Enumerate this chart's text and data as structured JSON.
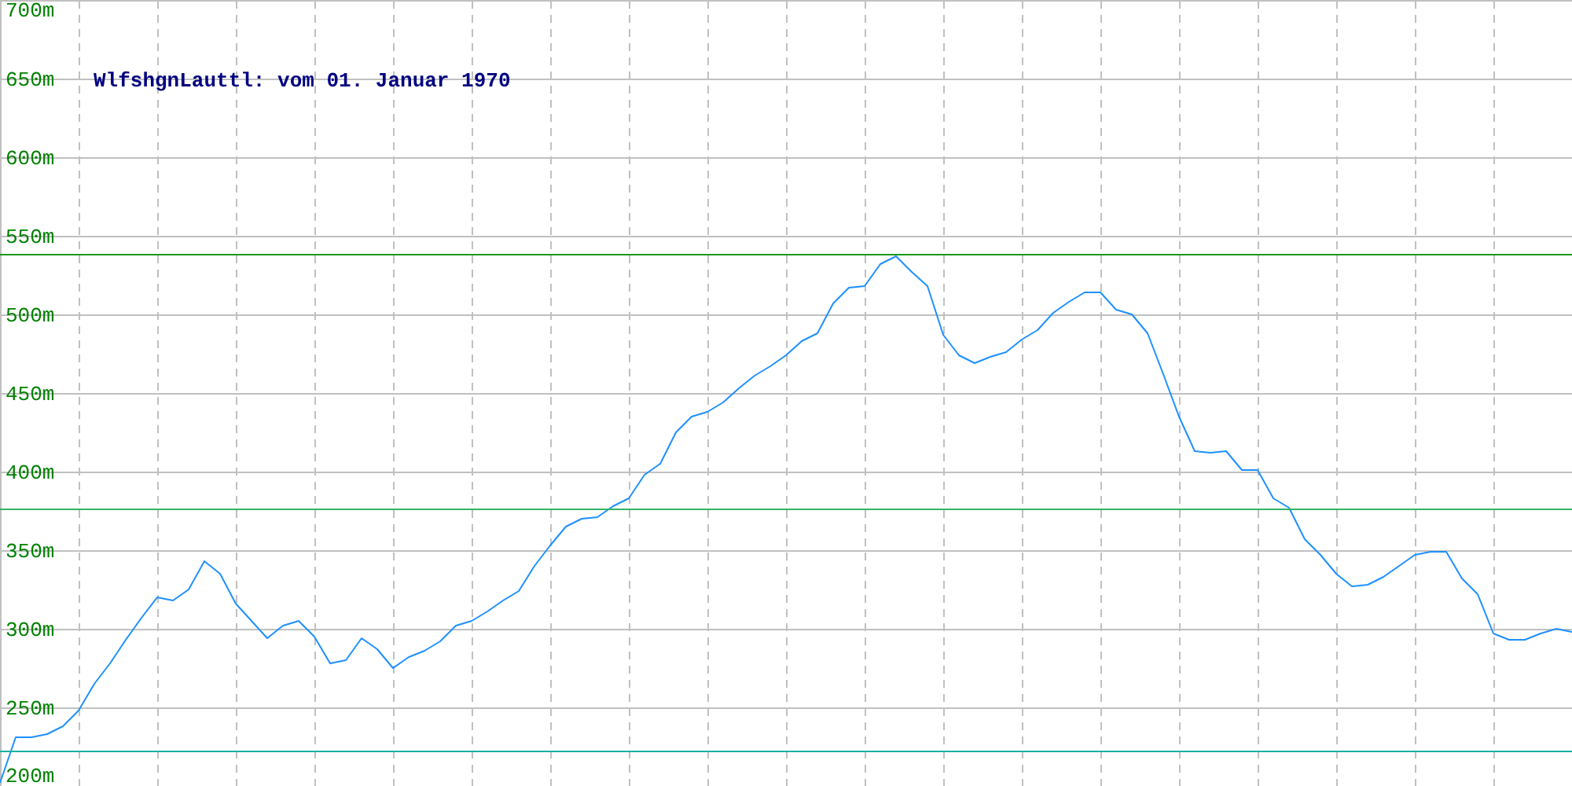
{
  "chart_data": {
    "type": "line",
    "title": "WlfshgnLauttl: vom 01. Januar 1970",
    "categories": [
      null,
      null,
      null,
      null,
      null,
      null,
      null,
      null,
      null,
      null,
      null,
      null,
      null,
      null,
      null,
      null,
      null,
      null,
      null,
      null,
      null,
      null,
      null,
      null,
      null,
      null,
      null,
      null,
      null,
      null,
      null,
      null,
      null,
      null,
      null,
      null,
      null,
      null,
      null,
      null,
      null,
      null,
      null,
      null,
      null,
      null,
      null,
      null,
      null,
      null,
      null,
      null,
      null,
      null,
      null,
      null,
      null,
      null,
      null,
      null,
      null,
      null,
      null,
      null,
      null,
      null,
      null,
      null,
      null,
      null,
      null,
      null,
      null,
      null,
      null,
      null,
      null,
      null,
      null,
      null,
      null,
      null,
      null,
      null,
      null,
      null,
      null,
      null,
      null,
      null,
      null,
      null,
      null,
      null,
      null,
      null,
      null,
      null,
      null,
      null,
      null
    ],
    "series": [
      {
        "color": "#1e90ff",
        "values": [
          202,
          231,
          231,
          233,
          238,
          248,
          265,
          278,
          293,
          307,
          320,
          318,
          325,
          343,
          335,
          316,
          305,
          294,
          302,
          305,
          295,
          278,
          280,
          294,
          287,
          275,
          282,
          286,
          292,
          302,
          305,
          311,
          318,
          324,
          340,
          353,
          365,
          370,
          371,
          378,
          383,
          398,
          405,
          425,
          435,
          438,
          444,
          453,
          461,
          467,
          474,
          483,
          488,
          507,
          517,
          518,
          532,
          537,
          527,
          518,
          487,
          474,
          469,
          473,
          476,
          484,
          490,
          501,
          508,
          514,
          514,
          503,
          500,
          488,
          462,
          435,
          413,
          412,
          413,
          401,
          401,
          383,
          377,
          357,
          347,
          335,
          327,
          328,
          333,
          340,
          347,
          349,
          349,
          332,
          322,
          297,
          293,
          293,
          297,
          300,
          298
        ]
      }
    ],
    "ylim": [
      200,
      700
    ],
    "yticks": [
      {
        "value": 200,
        "label": "200m"
      },
      {
        "value": 250,
        "label": "250m"
      },
      {
        "value": 300,
        "label": "300m"
      },
      {
        "value": 350,
        "label": "350m"
      },
      {
        "value": 400,
        "label": "400m"
      },
      {
        "value": 450,
        "label": "450m"
      },
      {
        "value": 500,
        "label": "500m"
      },
      {
        "value": 550,
        "label": "550m"
      },
      {
        "value": 600,
        "label": "600m"
      },
      {
        "value": 650,
        "label": "650m"
      },
      {
        "value": 700,
        "label": "700m"
      }
    ],
    "ref_lines": [
      {
        "axis": "y",
        "value": 538,
        "color": "#1a9a1a"
      },
      {
        "axis": "y",
        "value": 376,
        "color": "#33b366"
      },
      {
        "axis": "y",
        "value": 222,
        "color": "#1ab0a0"
      }
    ],
    "grid": true,
    "tick_labels": "y"
  }
}
